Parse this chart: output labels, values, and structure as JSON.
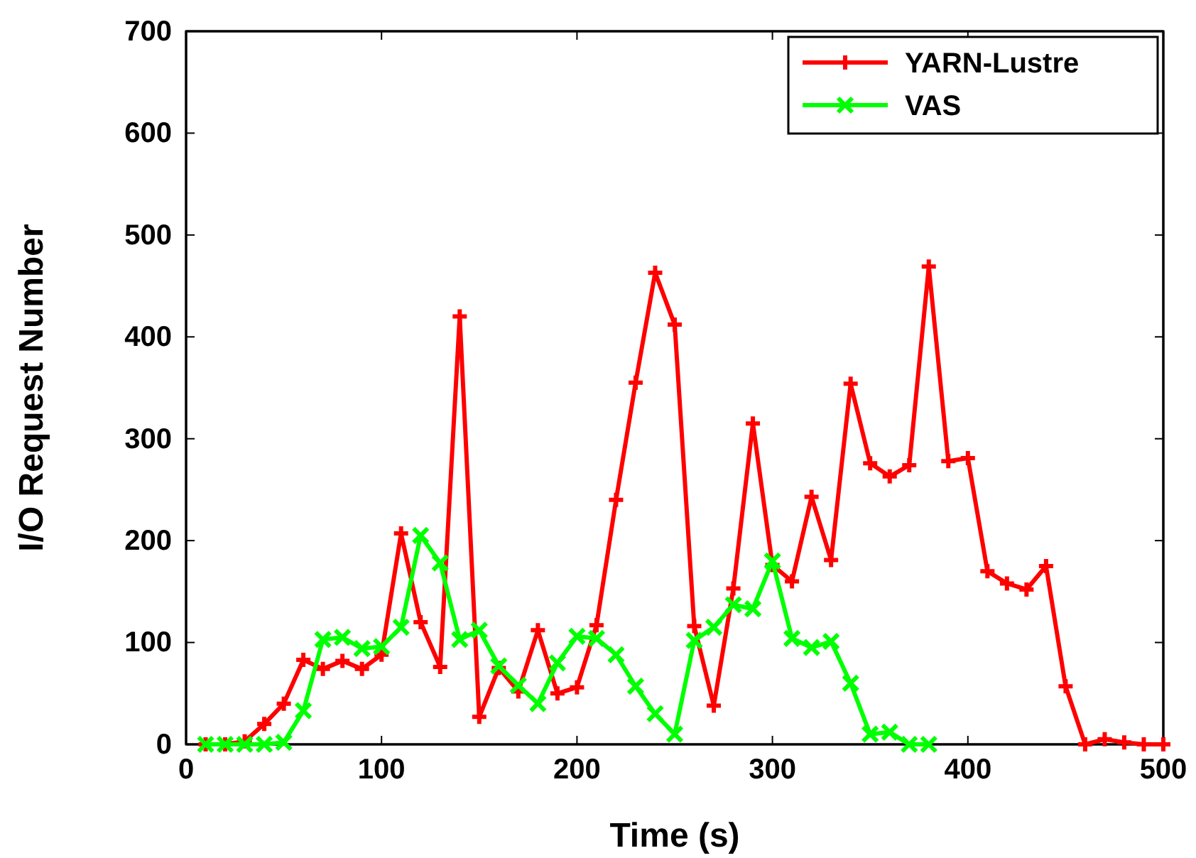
{
  "chart_data": {
    "type": "line",
    "xlabel": "Time (s)",
    "ylabel": "I/O Request Number",
    "xlim": [
      0,
      500
    ],
    "xticks": [
      0,
      100,
      200,
      300,
      400,
      500
    ],
    "ylim": [
      0,
      700
    ],
    "yticks": [
      0,
      100,
      200,
      300,
      400,
      500,
      600,
      700
    ],
    "legend": "top right",
    "grid": false,
    "series": [
      {
        "name": "YARN-Lustre",
        "color": "#ff0000",
        "marker": "cross",
        "x": [
          10,
          20,
          30,
          40,
          50,
          60,
          70,
          80,
          90,
          100,
          110,
          120,
          130,
          140,
          150,
          160,
          170,
          180,
          190,
          200,
          210,
          220,
          230,
          240,
          250,
          260,
          270,
          280,
          290,
          300,
          310,
          320,
          330,
          340,
          350,
          360,
          370,
          380,
          390,
          400,
          410,
          420,
          430,
          440,
          450,
          460,
          470,
          480,
          490,
          500
        ],
        "values": [
          0,
          0,
          3,
          20,
          40,
          83,
          74,
          82,
          74,
          88,
          207,
          120,
          76,
          420,
          27,
          75,
          52,
          112,
          50,
          56,
          117,
          240,
          355,
          463,
          412,
          116,
          38,
          153,
          315,
          176,
          160,
          243,
          181,
          354,
          276,
          263,
          274,
          469,
          278,
          281,
          170,
          158,
          152,
          175,
          57,
          0,
          5,
          2,
          0,
          0
        ]
      },
      {
        "name": "VAS",
        "color": "#00ff00",
        "marker": "x",
        "x": [
          10,
          20,
          30,
          40,
          50,
          60,
          70,
          80,
          90,
          100,
          110,
          120,
          130,
          140,
          150,
          160,
          170,
          180,
          190,
          200,
          210,
          220,
          230,
          240,
          250,
          260,
          270,
          280,
          290,
          300,
          310,
          320,
          330,
          340,
          350,
          360,
          370,
          380
        ],
        "values": [
          0,
          0,
          0,
          0,
          2,
          33,
          103,
          105,
          94,
          96,
          115,
          205,
          178,
          103,
          112,
          77,
          58,
          40,
          80,
          106,
          104,
          88,
          57,
          30,
          10,
          102,
          115,
          137,
          133,
          180,
          104,
          95,
          101,
          60,
          10,
          12,
          0,
          0
        ]
      }
    ]
  }
}
